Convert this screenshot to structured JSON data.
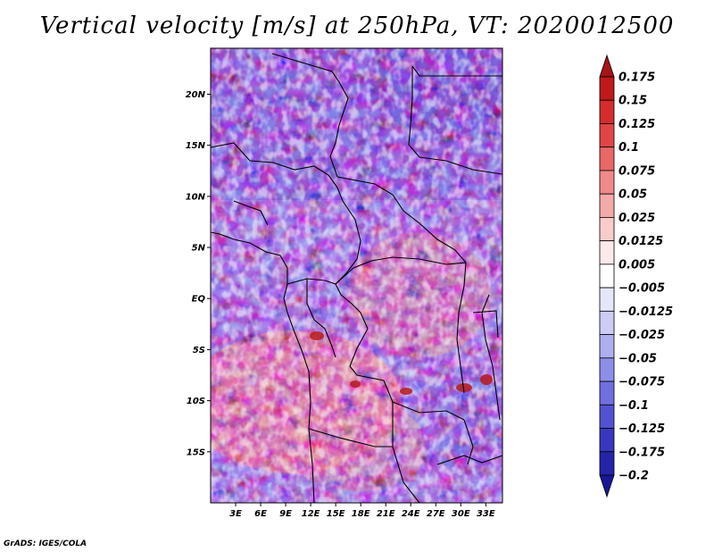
{
  "title": "Vertical velocity [m/s] at 250hPa, VT: 2020012500",
  "credit": "GrADS: IGES/COLA",
  "map": {
    "variable": "Vertical velocity",
    "units": "m/s",
    "level": "250hPa",
    "valid_time": "2020012500",
    "lat_labels": [
      "20N",
      "15N",
      "10N",
      "5N",
      "EQ",
      "5S",
      "10S",
      "15S"
    ],
    "lat_values": [
      20,
      15,
      10,
      5,
      0,
      -5,
      -10,
      -15
    ],
    "lon_labels": [
      "3E",
      "6E",
      "9E",
      "12E",
      "15E",
      "18E",
      "21E",
      "24E",
      "27E",
      "30E",
      "33E"
    ],
    "lon_values": [
      3,
      6,
      9,
      12,
      15,
      18,
      21,
      24,
      27,
      30,
      33
    ],
    "lat_range": [
      -20,
      24.5
    ],
    "lon_range": [
      0,
      35
    ]
  },
  "colorbar": {
    "labels": [
      "0.175",
      "0.15",
      "0.125",
      "0.1",
      "0.075",
      "0.05",
      "0.025",
      "0.0125",
      "0.005",
      "−0.005",
      "−0.0125",
      "−0.025",
      "−0.05",
      "−0.075",
      "−0.1",
      "−0.125",
      "−0.175",
      "−0.2"
    ],
    "colors": [
      "#a31518",
      "#c0191c",
      "#d52c2c",
      "#e04545",
      "#e86767",
      "#f08a8a",
      "#f5aaaa",
      "#f9cccc",
      "#fce9e9",
      "#ffffff",
      "#e6e6fb",
      "#ccccf6",
      "#aeaef0",
      "#8e8ee9",
      "#6f6fe0",
      "#5252d2",
      "#3838bf",
      "#2424a8",
      "#181896"
    ]
  }
}
